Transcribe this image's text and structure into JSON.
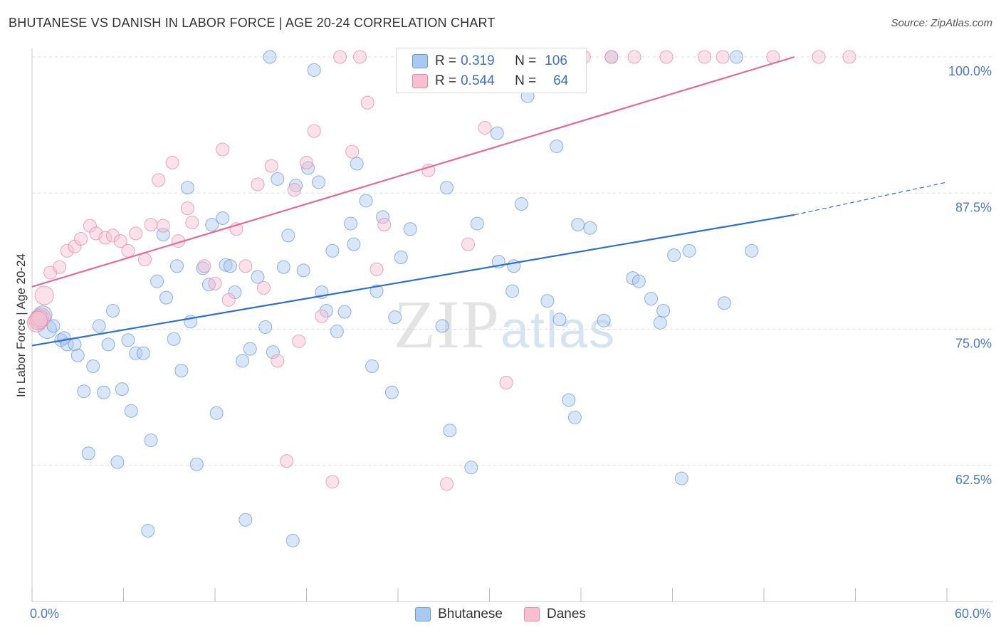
{
  "title": "BHUTANESE VS DANISH IN LABOR FORCE | AGE 20-24 CORRELATION CHART",
  "source": "Source: ZipAtlas.com",
  "watermark": {
    "zip": "ZIP",
    "atlas": "atlas"
  },
  "legend": {
    "r_label": "R =",
    "n_label": "N =",
    "rows": [
      {
        "r": "0.319",
        "n": "106",
        "color": "#aac8f0",
        "border": "#6a9ad8"
      },
      {
        "r": "0.544",
        "n": "64",
        "color": "#f7bfd0",
        "border": "#e08aa6"
      }
    ]
  },
  "bottom_legend": [
    {
      "label": "Bhutanese",
      "color": "#aac8f0",
      "border": "#6a9ad8"
    },
    {
      "label": "Danes",
      "color": "#f7bfd0",
      "border": "#e08aa6"
    }
  ],
  "chart_data": {
    "type": "scatter",
    "xlabel": "",
    "ylabel": "In Labor Force | Age 20-24",
    "xlim": [
      0,
      60
    ],
    "ylim": [
      50,
      100
    ],
    "x_tick_labels": [
      {
        "value": 0,
        "label": "0.0%"
      },
      {
        "value": 60,
        "label": "60.0%"
      }
    ],
    "y_tick_labels": [
      {
        "value": 100,
        "label": "100.0%"
      },
      {
        "value": 87.5,
        "label": "87.5%"
      },
      {
        "value": 75,
        "label": "75.0%"
      },
      {
        "value": 62.5,
        "label": "62.5%"
      }
    ],
    "grid": "horizontal dashed",
    "series": [
      {
        "name": "Bhutanese",
        "color": "#6a9ad8",
        "fill": "#aac8f0",
        "trend": {
          "x": [
            0,
            50
          ],
          "y": [
            73.5,
            85.5
          ],
          "dashed_to": [
            60,
            88.5
          ],
          "color": "#2f6fcc"
        },
        "points": [
          [
            0.5,
            76
          ],
          [
            0.7,
            76.3
          ],
          [
            1.0,
            75.0
          ],
          [
            1.4,
            75.3
          ],
          [
            1.9,
            74.0
          ],
          [
            2.1,
            74.2
          ],
          [
            2.3,
            73.6
          ],
          [
            2.8,
            73.6
          ],
          [
            3.0,
            72.6
          ],
          [
            3.4,
            69.3
          ],
          [
            3.7,
            63.6
          ],
          [
            4.0,
            71.6
          ],
          [
            4.4,
            75.3
          ],
          [
            4.7,
            69.2
          ],
          [
            5.0,
            73.6
          ],
          [
            5.3,
            76.7
          ],
          [
            5.6,
            62.8
          ],
          [
            5.9,
            69.5
          ],
          [
            6.3,
            74.0
          ],
          [
            6.5,
            67.5
          ],
          [
            6.8,
            72.8
          ],
          [
            7.3,
            72.8
          ],
          [
            7.6,
            56.5
          ],
          [
            7.8,
            64.8
          ],
          [
            8.2,
            79.4
          ],
          [
            8.6,
            83.7
          ],
          [
            8.8,
            77.9
          ],
          [
            9.3,
            74.1
          ],
          [
            9.5,
            80.8
          ],
          [
            9.8,
            71.2
          ],
          [
            10.2,
            88.0
          ],
          [
            10.4,
            75.7
          ],
          [
            10.8,
            62.6
          ],
          [
            11.2,
            80.6
          ],
          [
            11.6,
            79.1
          ],
          [
            11.8,
            84.6
          ],
          [
            12.1,
            67.3
          ],
          [
            12.5,
            85.2
          ],
          [
            12.7,
            80.9
          ],
          [
            13.0,
            80.8
          ],
          [
            13.3,
            78.4
          ],
          [
            13.8,
            72.1
          ],
          [
            14.0,
            57.5
          ],
          [
            14.3,
            73.2
          ],
          [
            14.8,
            79.8
          ],
          [
            15.3,
            75.2
          ],
          [
            15.6,
            100
          ],
          [
            15.8,
            72.9
          ],
          [
            16.1,
            88.8
          ],
          [
            16.5,
            80.7
          ],
          [
            16.8,
            83.6
          ],
          [
            17.1,
            55.6
          ],
          [
            17.3,
            88.2
          ],
          [
            17.8,
            80.4
          ],
          [
            18.1,
            89.8
          ],
          [
            18.5,
            98.8
          ],
          [
            18.8,
            88.5
          ],
          [
            19.0,
            78.4
          ],
          [
            19.3,
            76.7
          ],
          [
            19.7,
            82.2
          ],
          [
            20.0,
            74.8
          ],
          [
            20.5,
            76.6
          ],
          [
            20.9,
            84.7
          ],
          [
            21.1,
            82.8
          ],
          [
            21.3,
            90.2
          ],
          [
            21.9,
            86.8
          ],
          [
            22.3,
            71.6
          ],
          [
            22.6,
            78.5
          ],
          [
            23.0,
            85.3
          ],
          [
            23.6,
            69.2
          ],
          [
            23.8,
            76.1
          ],
          [
            24.2,
            81.6
          ],
          [
            24.8,
            84.2
          ],
          [
            26.9,
            75.3
          ],
          [
            27.2,
            88.0
          ],
          [
            27.4,
            65.7
          ],
          [
            28.8,
            62.3
          ],
          [
            29.2,
            84.7
          ],
          [
            30.5,
            93.0
          ],
          [
            30.6,
            81.2
          ],
          [
            31.5,
            78.5
          ],
          [
            31.6,
            80.8
          ],
          [
            32.1,
            86.5
          ],
          [
            32.5,
            96.4
          ],
          [
            33.8,
            77.6
          ],
          [
            34.4,
            91.8
          ],
          [
            34.6,
            75.9
          ],
          [
            35.2,
            68.5
          ],
          [
            35.8,
            84.6
          ],
          [
            35.6,
            66.9
          ],
          [
            36.6,
            84.3
          ],
          [
            37.5,
            75.8
          ],
          [
            38.0,
            100
          ],
          [
            39.4,
            79.7
          ],
          [
            39.8,
            79.4
          ],
          [
            40.6,
            77.8
          ],
          [
            41.2,
            75.6
          ],
          [
            41.4,
            76.7
          ],
          [
            42.1,
            81.8
          ],
          [
            42.6,
            61.3
          ],
          [
            43.1,
            82.2
          ],
          [
            45.4,
            77.4
          ],
          [
            46.2,
            100
          ],
          [
            47.2,
            82.2
          ],
          [
            35.5,
            100
          ]
        ]
      },
      {
        "name": "Danes",
        "color": "#e08aa6",
        "fill": "#f7bfd0",
        "trend": {
          "x": [
            0,
            50
          ],
          "y": [
            78.9,
            100
          ],
          "color": "#e46a93"
        },
        "points": [
          [
            0.3,
            75.6
          ],
          [
            0.8,
            78.1
          ],
          [
            1.2,
            80.2
          ],
          [
            1.8,
            80.7
          ],
          [
            2.3,
            82.2
          ],
          [
            2.8,
            82.6
          ],
          [
            3.2,
            83.3
          ],
          [
            3.8,
            84.5
          ],
          [
            4.2,
            83.8
          ],
          [
            4.8,
            83.4
          ],
          [
            5.3,
            83.6
          ],
          [
            5.8,
            83.1
          ],
          [
            6.3,
            82.2
          ],
          [
            6.8,
            83.8
          ],
          [
            7.4,
            81.4
          ],
          [
            7.8,
            84.6
          ],
          [
            8.3,
            88.7
          ],
          [
            8.6,
            84.5
          ],
          [
            9.2,
            90.3
          ],
          [
            9.6,
            83.1
          ],
          [
            10.2,
            86.1
          ],
          [
            10.5,
            84.8
          ],
          [
            11.3,
            80.8
          ],
          [
            12.0,
            79.2
          ],
          [
            12.5,
            91.5
          ],
          [
            12.9,
            77.7
          ],
          [
            13.4,
            84.2
          ],
          [
            14.0,
            80.8
          ],
          [
            14.8,
            88.3
          ],
          [
            15.2,
            78.8
          ],
          [
            15.7,
            90.0
          ],
          [
            16.1,
            72.1
          ],
          [
            16.7,
            62.9
          ],
          [
            17.2,
            87.8
          ],
          [
            17.5,
            73.9
          ],
          [
            18.0,
            90.3
          ],
          [
            18.5,
            93.2
          ],
          [
            19.0,
            76.2
          ],
          [
            19.7,
            61.0
          ],
          [
            20.2,
            100
          ],
          [
            21.0,
            91.3
          ],
          [
            21.5,
            100
          ],
          [
            22.0,
            95.8
          ],
          [
            22.6,
            80.5
          ],
          [
            23.1,
            84.6
          ],
          [
            25.1,
            100
          ],
          [
            26.0,
            89.6
          ],
          [
            27.2,
            60.8
          ],
          [
            28.0,
            100
          ],
          [
            28.6,
            82.8
          ],
          [
            29.7,
            93.5
          ],
          [
            31.1,
            70.1
          ],
          [
            36.2,
            100
          ],
          [
            38.0,
            100
          ],
          [
            39.5,
            100
          ],
          [
            41.6,
            100
          ],
          [
            44.1,
            100
          ],
          [
            45.3,
            100
          ],
          [
            48.6,
            100
          ],
          [
            51.6,
            100
          ],
          [
            53.6,
            100
          ],
          [
            0.5,
            75.9
          ],
          [
            0.6,
            76.1
          ],
          [
            0.4,
            75.8
          ]
        ]
      }
    ]
  }
}
